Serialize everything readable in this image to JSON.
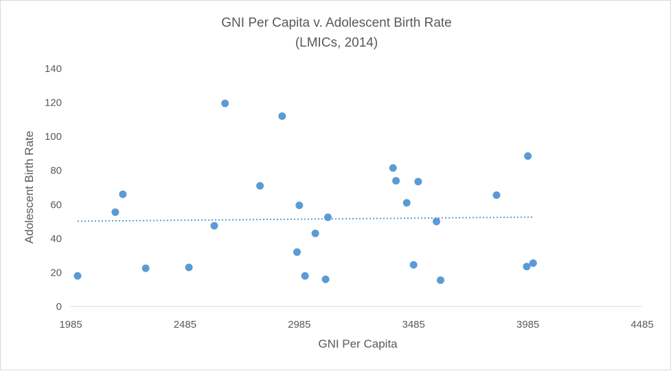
{
  "chart_data": {
    "type": "scatter",
    "title": "GNI Per Capita v. Adolescent Birth Rate",
    "subtitle": "(LMICs, 2014)",
    "xlabel": "GNI Per Capita",
    "ylabel": "Adolescent Birth Rate",
    "xlim": [
      1985,
      4485
    ],
    "ylim": [
      0,
      140
    ],
    "xticks": [
      1985,
      2485,
      2985,
      3485,
      3985,
      4485
    ],
    "yticks": [
      0,
      20,
      40,
      60,
      80,
      100,
      120,
      140
    ],
    "grid": false,
    "legend": "none",
    "point_color": "#5b9bd5",
    "trendline": {
      "type": "linear",
      "style": "dotted",
      "x": [
        2015,
        4005
      ],
      "y": [
        50.2,
        52.6
      ]
    },
    "points": [
      {
        "x": 2015,
        "y": 18
      },
      {
        "x": 2180,
        "y": 55.5
      },
      {
        "x": 2213,
        "y": 66
      },
      {
        "x": 2313,
        "y": 22.5
      },
      {
        "x": 2502,
        "y": 23
      },
      {
        "x": 2613,
        "y": 47.5
      },
      {
        "x": 2660,
        "y": 119.5
      },
      {
        "x": 2813,
        "y": 71
      },
      {
        "x": 2910,
        "y": 112
      },
      {
        "x": 2975,
        "y": 32
      },
      {
        "x": 2985,
        "y": 59.5
      },
      {
        "x": 3010,
        "y": 18
      },
      {
        "x": 3055,
        "y": 43
      },
      {
        "x": 3100,
        "y": 16
      },
      {
        "x": 3110,
        "y": 52.5
      },
      {
        "x": 3395,
        "y": 81.5
      },
      {
        "x": 3408,
        "y": 74
      },
      {
        "x": 3455,
        "y": 61
      },
      {
        "x": 3485,
        "y": 24.5
      },
      {
        "x": 3505,
        "y": 73.5
      },
      {
        "x": 3585,
        "y": 50
      },
      {
        "x": 3603,
        "y": 15.5
      },
      {
        "x": 3848,
        "y": 65.5
      },
      {
        "x": 3980,
        "y": 23.5
      },
      {
        "x": 3985,
        "y": 88.5
      },
      {
        "x": 4008,
        "y": 25.5
      }
    ]
  }
}
